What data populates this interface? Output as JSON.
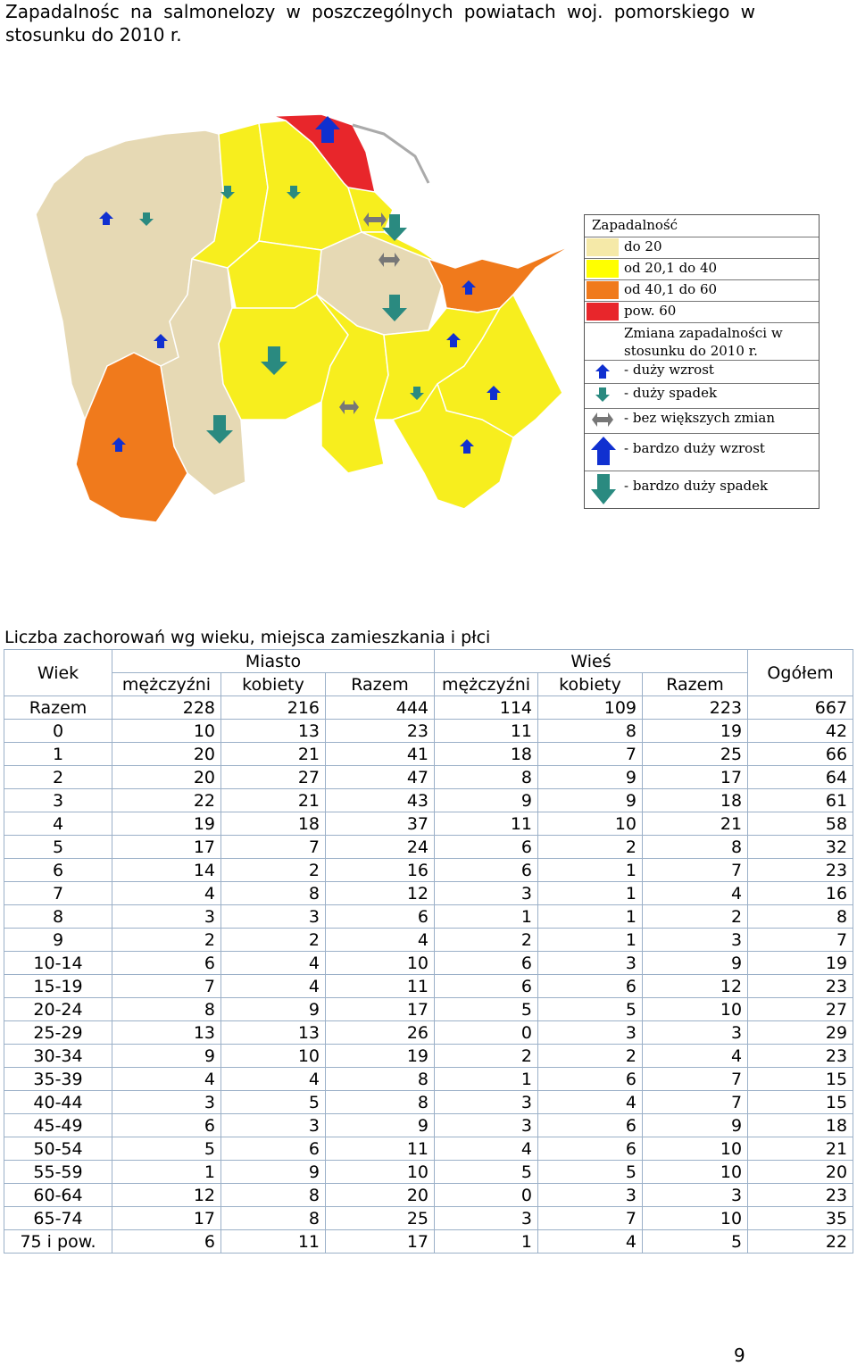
{
  "title": "Zapadalnośc na salmonelozy w poszczególnych powiatach woj. pomorskiego w stosunku do 2010 r.",
  "map_legend": {
    "heading": "Zapadalność",
    "ranges": [
      {
        "label": "do 20",
        "color": "#f5e9a8"
      },
      {
        "label": "od 20,1 do 40",
        "color": "#ffff00"
      },
      {
        "label": "od 40,1 do 60",
        "color": "#f07a1c"
      },
      {
        "label": "pow. 60",
        "color": "#e8262b"
      }
    ],
    "change_heading": "Zmiana zapadalności w stosunku do 2010 r.",
    "changes": [
      {
        "label": "- duży wzrost",
        "icon": "small-up-arrow-icon"
      },
      {
        "label": "- duży spadek",
        "icon": "small-down-arrow-icon"
      },
      {
        "label": "- bez większych zmian",
        "icon": "double-arrow-icon"
      },
      {
        "label": "- bardzo duży wzrost",
        "icon": "big-up-arrow-icon"
      },
      {
        "label": "- bardzo duży spadek",
        "icon": "big-down-arrow-icon"
      }
    ]
  },
  "colors": {
    "beige": "#e6d9b4",
    "yellow": "#f7ee1e",
    "orange": "#f07a1c",
    "red": "#e8262b",
    "up_arrow": "#1030d0",
    "down_arrow": "#2a8a80"
  },
  "table": {
    "caption": "Liczba zachorowań wg wieku, miejsca zamieszkania i płci",
    "col_wiek": "Wiek",
    "group_miasto": "Miasto",
    "group_wies": "Wieś",
    "col_ogolem": "Ogółem",
    "sub_headers": [
      "mężczyźni",
      "kobiety",
      "Razem",
      "mężczyźni",
      "kobiety",
      "Razem"
    ],
    "rows": [
      [
        "Razem",
        "228",
        "216",
        "444",
        "114",
        "109",
        "223",
        "667"
      ],
      [
        "0",
        "10",
        "13",
        "23",
        "11",
        "8",
        "19",
        "42"
      ],
      [
        "1",
        "20",
        "21",
        "41",
        "18",
        "7",
        "25",
        "66"
      ],
      [
        "2",
        "20",
        "27",
        "47",
        "8",
        "9",
        "17",
        "64"
      ],
      [
        "3",
        "22",
        "21",
        "43",
        "9",
        "9",
        "18",
        "61"
      ],
      [
        "4",
        "19",
        "18",
        "37",
        "11",
        "10",
        "21",
        "58"
      ],
      [
        "5",
        "17",
        "7",
        "24",
        "6",
        "2",
        "8",
        "32"
      ],
      [
        "6",
        "14",
        "2",
        "16",
        "6",
        "1",
        "7",
        "23"
      ],
      [
        "7",
        "4",
        "8",
        "12",
        "3",
        "1",
        "4",
        "16"
      ],
      [
        "8",
        "3",
        "3",
        "6",
        "1",
        "1",
        "2",
        "8"
      ],
      [
        "9",
        "2",
        "2",
        "4",
        "2",
        "1",
        "3",
        "7"
      ],
      [
        "10-14",
        "6",
        "4",
        "10",
        "6",
        "3",
        "9",
        "19"
      ],
      [
        "15-19",
        "7",
        "4",
        "11",
        "6",
        "6",
        "12",
        "23"
      ],
      [
        "20-24",
        "8",
        "9",
        "17",
        "5",
        "5",
        "10",
        "27"
      ],
      [
        "25-29",
        "13",
        "13",
        "26",
        "0",
        "3",
        "3",
        "29"
      ],
      [
        "30-34",
        "9",
        "10",
        "19",
        "2",
        "2",
        "4",
        "23"
      ],
      [
        "35-39",
        "4",
        "4",
        "8",
        "1",
        "6",
        "7",
        "15"
      ],
      [
        "40-44",
        "3",
        "5",
        "8",
        "3",
        "4",
        "7",
        "15"
      ],
      [
        "45-49",
        "6",
        "3",
        "9",
        "3",
        "6",
        "9",
        "18"
      ],
      [
        "50-54",
        "5",
        "6",
        "11",
        "4",
        "6",
        "10",
        "21"
      ],
      [
        "55-59",
        "1",
        "9",
        "10",
        "5",
        "5",
        "10",
        "20"
      ],
      [
        "60-64",
        "12",
        "8",
        "20",
        "0",
        "3",
        "3",
        "23"
      ],
      [
        "65-74",
        "17",
        "8",
        "25",
        "3",
        "7",
        "10",
        "35"
      ],
      [
        "75 i pow.",
        "6",
        "11",
        "17",
        "1",
        "4",
        "5",
        "22"
      ]
    ]
  },
  "page_number": "9"
}
